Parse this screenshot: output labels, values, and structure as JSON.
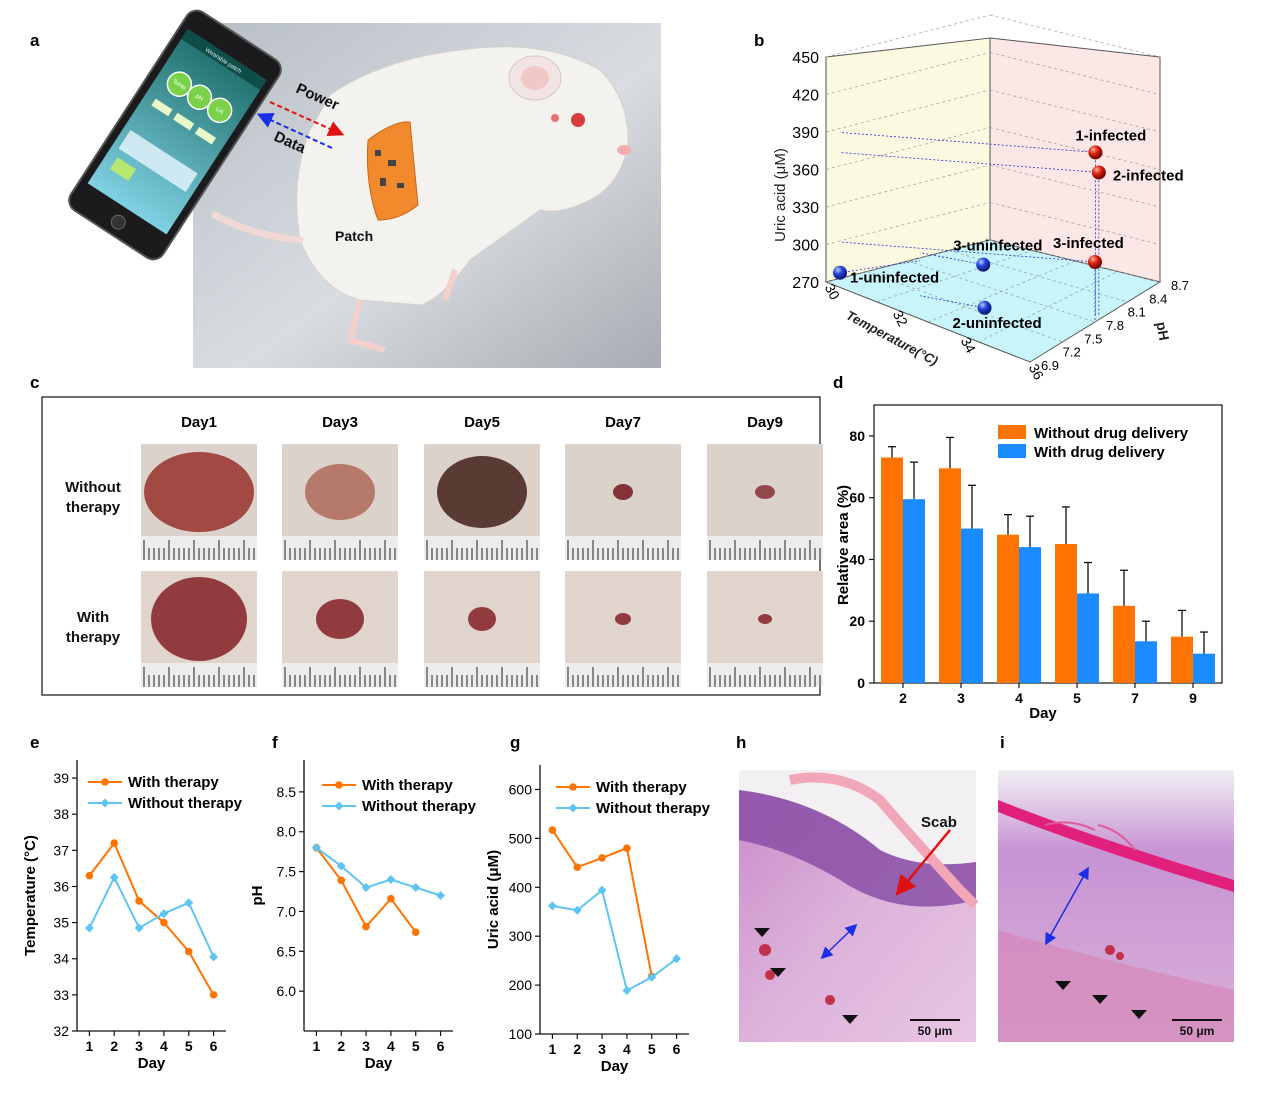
{
  "panel_letters": [
    "a",
    "b",
    "c",
    "d",
    "e",
    "f",
    "g",
    "h",
    "i"
  ],
  "colors": {
    "orange": "#ff7300",
    "blue": "#1a8cff",
    "light_blue": "#5ec5f0",
    "sphere_red": "#cc1111",
    "sphere_blue": "#1c3fd6"
  },
  "panel_a": {
    "arrow_power": "Power",
    "arrow_data": "Data",
    "patch_label": "Patch",
    "phone_header": "Wearable patch",
    "phone_bubbles": [
      "Temp",
      "pH",
      "UA"
    ]
  },
  "panel_c": {
    "days": [
      "Day1",
      "Day3",
      "Day5",
      "Day7",
      "Day9"
    ],
    "rows": [
      "Without therapy",
      "With therapy"
    ]
  },
  "panel_h": {
    "scab_label": "Scab",
    "scale_bar": "50 μm"
  },
  "panel_i": {
    "scale_bar": "50 μm"
  },
  "chart_data": [
    {
      "panel": "b",
      "type": "scatter",
      "xlabel": "Temperature(°C)",
      "ylabel": "pH",
      "zlabel": "Uric acid (μM)",
      "x_ticks": [
        "30",
        "32",
        "34",
        "36"
      ],
      "y_ticks": [
        "6.9",
        "7.2",
        "7.5",
        "7.8",
        "8.1",
        "8.4",
        "8.7"
      ],
      "z_ticks": [
        "270",
        "300",
        "330",
        "360",
        "390",
        "420",
        "450"
      ],
      "xlim": [
        30,
        36
      ],
      "ylim": [
        6.9,
        8.7
      ],
      "zlim": [
        270,
        450
      ],
      "points": [
        {
          "label": "1-infected",
          "group": "infected",
          "temperature": 35.8,
          "ph": 7.9,
          "uric_acid": 400
        },
        {
          "label": "2-infected",
          "group": "infected",
          "temperature": 35.9,
          "ph": 7.9,
          "uric_acid": 385
        },
        {
          "label": "3-infected",
          "group": "infected",
          "temperature": 36.0,
          "ph": 7.8,
          "uric_acid": 318
        },
        {
          "label": "1-uninfected",
          "group": "uninfected",
          "temperature": 30.2,
          "ph": 7.0,
          "uric_acid": 276
        },
        {
          "label": "2-uninfected",
          "group": "uninfected",
          "temperature": 33.6,
          "ph": 7.4,
          "uric_acid": 270
        },
        {
          "label": "3-uninfected",
          "group": "uninfected",
          "temperature": 32.5,
          "ph": 7.9,
          "uric_acid": 275
        }
      ]
    },
    {
      "panel": "d",
      "type": "bar",
      "categories": [
        "2",
        "3",
        "4",
        "5",
        "7",
        "9"
      ],
      "series": [
        {
          "name": "Without drug delivery",
          "values": [
            73,
            69.5,
            48,
            45,
            25,
            15
          ],
          "errors": [
            3.5,
            10,
            6.5,
            12,
            11.5,
            8.5
          ]
        },
        {
          "name": "With drug delivery",
          "values": [
            59.5,
            50,
            44,
            29,
            13.5,
            9.5
          ],
          "errors": [
            12,
            14,
            10,
            10,
            6.5,
            7
          ]
        }
      ],
      "xlabel": "Day",
      "ylabel": "Relative area (%)",
      "ylim": [
        0,
        90
      ],
      "y_ticks": [
        "0",
        "20",
        "40",
        "60",
        "80"
      ]
    },
    {
      "panel": "e",
      "type": "line",
      "x": [
        1,
        2,
        3,
        4,
        5,
        6
      ],
      "x_ticks": [
        "1",
        "2",
        "3",
        "4",
        "5",
        "6"
      ],
      "series": [
        {
          "name": "With therapy",
          "values": [
            36.3,
            37.2,
            35.6,
            35.0,
            34.2,
            33.0
          ]
        },
        {
          "name": "Without therapy",
          "values": [
            34.85,
            36.25,
            34.85,
            35.25,
            35.55,
            34.05
          ]
        }
      ],
      "xlabel": "Day",
      "ylabel": "Temperature (°C)",
      "ylim": [
        32,
        39.5
      ],
      "y_ticks": [
        "32",
        "33",
        "34",
        "35",
        "36",
        "37",
        "38",
        "39"
      ]
    },
    {
      "panel": "f",
      "type": "line",
      "x": [
        1,
        2,
        3,
        4,
        5,
        6
      ],
      "x_ticks": [
        "1",
        "2",
        "3",
        "4",
        "5",
        "6"
      ],
      "series": [
        {
          "name": "With therapy",
          "values": [
            7.8,
            7.39,
            6.81,
            7.16,
            6.74,
            null
          ]
        },
        {
          "name": "Without therapy",
          "values": [
            7.8,
            7.57,
            7.3,
            7.4,
            7.3,
            7.2
          ]
        }
      ],
      "xlabel": "Day",
      "ylabel": "pH",
      "ylim": [
        5.5,
        8.9
      ],
      "y_ticks": [
        "6.0",
        "6.5",
        "7.0",
        "7.5",
        "8.0",
        "8.5"
      ]
    },
    {
      "panel": "g",
      "type": "line",
      "x": [
        1,
        2,
        3,
        4,
        5,
        6
      ],
      "x_ticks": [
        "1",
        "2",
        "3",
        "4",
        "5",
        "6"
      ],
      "series": [
        {
          "name": "With therapy",
          "values": [
            517,
            441,
            460,
            480,
            218,
            null
          ]
        },
        {
          "name": "Without therapy",
          "values": [
            362,
            353,
            394,
            189,
            216,
            254
          ]
        }
      ],
      "xlabel": "Day",
      "ylabel": "Uric acid (μM)",
      "ylim": [
        100,
        650
      ],
      "y_ticks": [
        "100",
        "200",
        "300",
        "400",
        "500",
        "600"
      ]
    }
  ]
}
